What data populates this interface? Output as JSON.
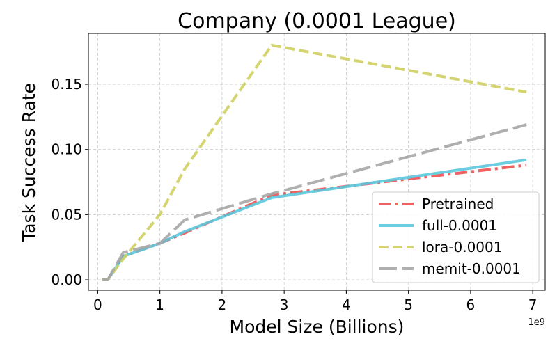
{
  "chart_data": {
    "type": "line",
    "title": "Company (0.0001 League)",
    "xlabel": "Model Size (Billions)",
    "ylabel": "Task Success Rate",
    "x_offset_label": "1e9",
    "xlim": [
      -0.15,
      7.2
    ],
    "ylim": [
      -0.008,
      0.189
    ],
    "xticks": [
      0,
      1,
      2,
      3,
      4,
      5,
      6,
      7
    ],
    "xtick_labels": [
      "0",
      "1",
      "2",
      "3",
      "4",
      "5",
      "6",
      "7"
    ],
    "yticks": [
      0.0,
      0.05,
      0.1,
      0.15
    ],
    "ytick_labels": [
      "0.00",
      "0.05",
      "0.10",
      "0.15"
    ],
    "grid": true,
    "legend_position": "lower-right",
    "series": [
      {
        "name": "Pretrained",
        "color": "#f05050",
        "style": "dashdot",
        "x": [
          0.07,
          0.16,
          0.41,
          1.0,
          1.4,
          2.8,
          6.9
        ],
        "y": [
          0.0,
          0.0,
          0.018,
          0.028,
          0.036,
          0.065,
          0.088
        ]
      },
      {
        "name": "full-0.0001",
        "color": "#5bc8dc",
        "style": "solid",
        "x": [
          0.07,
          0.16,
          0.41,
          1.0,
          1.4,
          2.8,
          6.9
        ],
        "y": [
          0.0,
          0.0,
          0.018,
          0.028,
          0.037,
          0.063,
          0.092
        ]
      },
      {
        "name": "lora-0.0001",
        "color": "#cfcf60",
        "style": "dashed",
        "x": [
          0.07,
          0.16,
          0.41,
          1.0,
          1.4,
          2.8,
          6.9
        ],
        "y": [
          0.0,
          0.0,
          0.016,
          0.05,
          0.085,
          0.18,
          0.144
        ]
      },
      {
        "name": "memit-0.0001",
        "color": "#a6a6a6",
        "style": "longdash",
        "x": [
          0.07,
          0.16,
          0.41,
          1.0,
          1.4,
          2.8,
          6.9
        ],
        "y": [
          0.0,
          0.0,
          0.021,
          0.028,
          0.046,
          0.066,
          0.119
        ]
      }
    ]
  }
}
